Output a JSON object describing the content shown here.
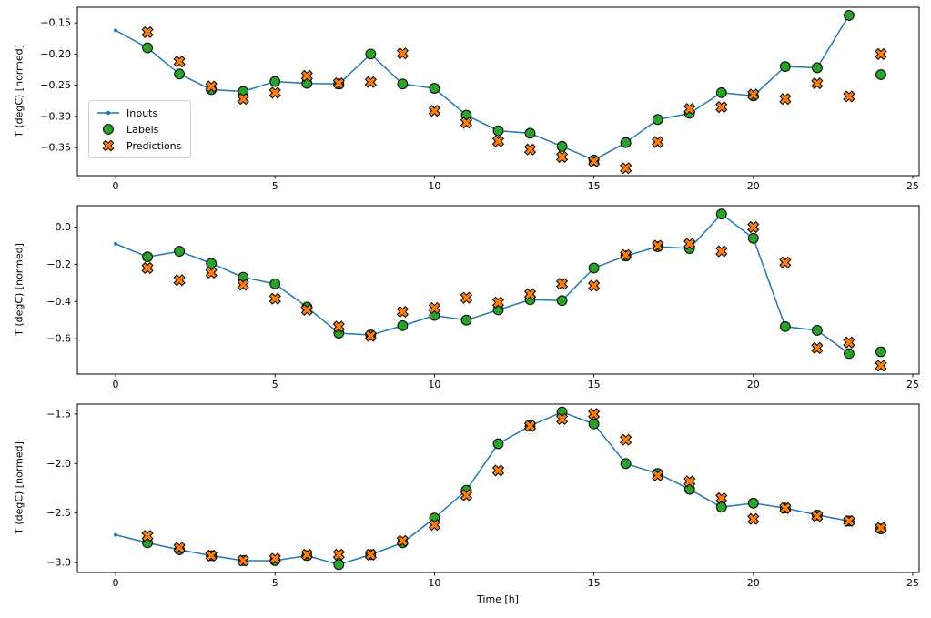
{
  "figure": {
    "background": "#ffffff"
  },
  "colors": {
    "inputs": "#1f77b4",
    "labels": "#2ca02c",
    "predictions": "#ff7f0e",
    "edge": "#000000"
  },
  "xlabel": "Time [h]",
  "legend": {
    "items": [
      {
        "label": "Inputs"
      },
      {
        "label": "Labels"
      },
      {
        "label": "Predictions"
      }
    ]
  },
  "chart_data": [
    {
      "type": "line",
      "ylabel": "T (degC) [normed]",
      "xlabel": "",
      "xlim": [
        -1.2,
        25.2
      ],
      "ylim": [
        -0.395,
        -0.125
      ],
      "xticks": [
        0,
        5,
        10,
        15,
        20,
        25
      ],
      "yticks": [
        -0.15,
        -0.2,
        -0.25,
        -0.3,
        -0.35
      ],
      "ytick_decimals": 2,
      "legend_visible": true,
      "series": [
        {
          "name": "Inputs",
          "kind": "line",
          "marker": "dot",
          "color": "#1f77b4",
          "x": [
            0,
            1,
            2,
            3,
            4,
            5,
            6,
            7,
            8,
            9,
            10,
            11,
            12,
            13,
            14,
            15,
            16,
            17,
            18,
            19,
            20,
            21,
            22,
            23
          ],
          "y": [
            -0.162,
            -0.19,
            -0.232,
            -0.257,
            -0.26,
            -0.244,
            -0.247,
            -0.248,
            -0.2,
            -0.248,
            -0.255,
            -0.298,
            -0.323,
            -0.327,
            -0.348,
            -0.37,
            -0.342,
            -0.305,
            -0.295,
            -0.262,
            -0.267,
            -0.22,
            -0.222,
            -0.138
          ]
        },
        {
          "name": "Labels",
          "kind": "scatter",
          "marker": "circle",
          "color": "#2ca02c",
          "x": [
            1,
            2,
            3,
            4,
            5,
            6,
            7,
            8,
            9,
            10,
            11,
            12,
            13,
            14,
            15,
            16,
            17,
            18,
            19,
            20,
            21,
            22,
            23,
            24
          ],
          "y": [
            -0.19,
            -0.232,
            -0.257,
            -0.26,
            -0.244,
            -0.247,
            -0.248,
            -0.2,
            -0.248,
            -0.255,
            -0.298,
            -0.323,
            -0.327,
            -0.348,
            -0.37,
            -0.342,
            -0.305,
            -0.295,
            -0.262,
            -0.267,
            -0.22,
            -0.222,
            -0.138,
            -0.233
          ]
        },
        {
          "name": "Predictions",
          "kind": "scatter",
          "marker": "X",
          "color": "#ff7f0e",
          "x": [
            1,
            2,
            3,
            4,
            5,
            6,
            7,
            8,
            9,
            10,
            11,
            12,
            13,
            14,
            15,
            16,
            17,
            18,
            19,
            20,
            21,
            22,
            23,
            24
          ],
          "y": [
            -0.165,
            -0.212,
            -0.252,
            -0.272,
            -0.262,
            -0.235,
            -0.247,
            -0.245,
            -0.199,
            -0.291,
            -0.31,
            -0.34,
            -0.353,
            -0.365,
            -0.372,
            -0.383,
            -0.341,
            -0.288,
            -0.285,
            -0.265,
            -0.272,
            -0.247,
            -0.268,
            -0.2
          ]
        }
      ]
    },
    {
      "type": "line",
      "ylabel": "T (degC) [normed]",
      "xlabel": "",
      "xlim": [
        -1.2,
        25.2
      ],
      "ylim": [
        -0.79,
        0.115
      ],
      "xticks": [
        0,
        5,
        10,
        15,
        20,
        25
      ],
      "yticks": [
        0.0,
        -0.2,
        -0.4,
        -0.6
      ],
      "ytick_decimals": 1,
      "legend_visible": false,
      "series": [
        {
          "name": "Inputs",
          "kind": "line",
          "marker": "dot",
          "color": "#1f77b4",
          "x": [
            0,
            1,
            2,
            3,
            4,
            5,
            6,
            7,
            8,
            9,
            10,
            11,
            12,
            13,
            14,
            15,
            16,
            17,
            18,
            19,
            20,
            21,
            22,
            23
          ],
          "y": [
            -0.09,
            -0.16,
            -0.13,
            -0.195,
            -0.27,
            -0.305,
            -0.43,
            -0.57,
            -0.58,
            -0.53,
            -0.475,
            -0.5,
            -0.445,
            -0.39,
            -0.395,
            -0.22,
            -0.155,
            -0.105,
            -0.115,
            0.07,
            -0.06,
            -0.535,
            -0.555,
            -0.68
          ]
        },
        {
          "name": "Labels",
          "kind": "scatter",
          "marker": "circle",
          "color": "#2ca02c",
          "x": [
            1,
            2,
            3,
            4,
            5,
            6,
            7,
            8,
            9,
            10,
            11,
            12,
            13,
            14,
            15,
            16,
            17,
            18,
            19,
            20,
            21,
            22,
            23,
            24
          ],
          "y": [
            -0.16,
            -0.13,
            -0.195,
            -0.27,
            -0.305,
            -0.43,
            -0.57,
            -0.58,
            -0.53,
            -0.475,
            -0.5,
            -0.445,
            -0.39,
            -0.395,
            -0.22,
            -0.155,
            -0.105,
            -0.115,
            0.07,
            -0.06,
            -0.535,
            -0.555,
            -0.68,
            -0.67
          ]
        },
        {
          "name": "Predictions",
          "kind": "scatter",
          "marker": "X",
          "color": "#ff7f0e",
          "x": [
            1,
            2,
            3,
            4,
            5,
            6,
            7,
            8,
            9,
            10,
            11,
            12,
            13,
            14,
            15,
            16,
            17,
            18,
            19,
            20,
            21,
            22,
            23,
            24
          ],
          "y": [
            -0.22,
            -0.285,
            -0.245,
            -0.31,
            -0.385,
            -0.445,
            -0.535,
            -0.585,
            -0.455,
            -0.435,
            -0.38,
            -0.405,
            -0.36,
            -0.305,
            -0.315,
            -0.15,
            -0.1,
            -0.09,
            -0.13,
            0.0,
            -0.19,
            -0.65,
            -0.62,
            -0.745
          ]
        }
      ]
    },
    {
      "type": "line",
      "ylabel": "T (degC) [normed]",
      "xlabel": "Time [h]",
      "xlim": [
        -1.2,
        25.2
      ],
      "ylim": [
        -3.1,
        -1.4
      ],
      "xticks": [
        0,
        5,
        10,
        15,
        20,
        25
      ],
      "yticks": [
        -1.5,
        -2.0,
        -2.5,
        -3.0
      ],
      "ytick_decimals": 1,
      "legend_visible": false,
      "series": [
        {
          "name": "Inputs",
          "kind": "line",
          "marker": "dot",
          "color": "#1f77b4",
          "x": [
            0,
            1,
            2,
            3,
            4,
            5,
            6,
            7,
            8,
            9,
            10,
            11,
            12,
            13,
            14,
            15,
            16,
            17,
            18,
            19,
            20,
            21,
            22,
            23
          ],
          "y": [
            -2.72,
            -2.8,
            -2.87,
            -2.93,
            -2.98,
            -2.98,
            -2.93,
            -3.02,
            -2.92,
            -2.8,
            -2.55,
            -2.27,
            -1.8,
            -1.62,
            -1.48,
            -1.6,
            -2.0,
            -2.1,
            -2.26,
            -2.44,
            -2.4,
            -2.45,
            -2.52,
            -2.58
          ]
        },
        {
          "name": "Labels",
          "kind": "scatter",
          "marker": "circle",
          "color": "#2ca02c",
          "x": [
            1,
            2,
            3,
            4,
            5,
            6,
            7,
            8,
            9,
            10,
            11,
            12,
            13,
            14,
            15,
            16,
            17,
            18,
            19,
            20,
            21,
            22,
            23,
            24
          ],
          "y": [
            -2.8,
            -2.87,
            -2.93,
            -2.98,
            -2.98,
            -2.93,
            -3.02,
            -2.92,
            -2.8,
            -2.55,
            -2.27,
            -1.8,
            -1.62,
            -1.48,
            -1.6,
            -2.0,
            -2.1,
            -2.26,
            -2.44,
            -2.4,
            -2.45,
            -2.52,
            -2.58,
            -2.66
          ]
        },
        {
          "name": "Predictions",
          "kind": "scatter",
          "marker": "X",
          "color": "#ff7f0e",
          "x": [
            1,
            2,
            3,
            4,
            5,
            6,
            7,
            8,
            9,
            10,
            11,
            12,
            13,
            14,
            15,
            16,
            17,
            18,
            19,
            20,
            21,
            22,
            23,
            24
          ],
          "y": [
            -2.73,
            -2.85,
            -2.93,
            -2.98,
            -2.96,
            -2.92,
            -2.92,
            -2.92,
            -2.78,
            -2.62,
            -2.32,
            -2.07,
            -1.62,
            -1.55,
            -1.5,
            -1.76,
            -2.12,
            -2.18,
            -2.35,
            -2.56,
            -2.45,
            -2.53,
            -2.58,
            -2.65
          ]
        }
      ]
    }
  ]
}
